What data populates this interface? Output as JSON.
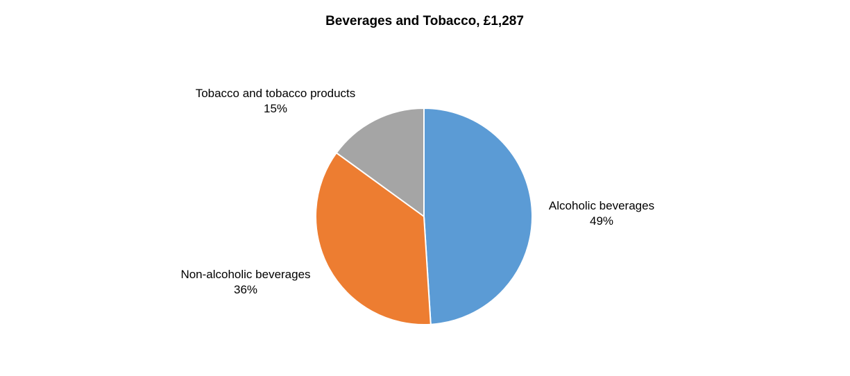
{
  "chart_data": {
    "type": "pie",
    "title": "Beverages and Tobacco, £1,287",
    "slices": [
      {
        "label": "Alcoholic beverages",
        "value": 49,
        "value_label": "49%",
        "color": "#5B9BD5"
      },
      {
        "label": "Non-alcoholic beverages",
        "value": 36,
        "value_label": "36%",
        "color": "#ED7D31"
      },
      {
        "label": "Tobacco and tobacco products",
        "value": 15,
        "value_label": "15%",
        "color": "#A5A5A5"
      }
    ],
    "start_angle": "12 o'clock",
    "direction": "clockwise",
    "slice_border_color": "#FFFFFF",
    "legend": "none (labels placed beside slices)"
  }
}
